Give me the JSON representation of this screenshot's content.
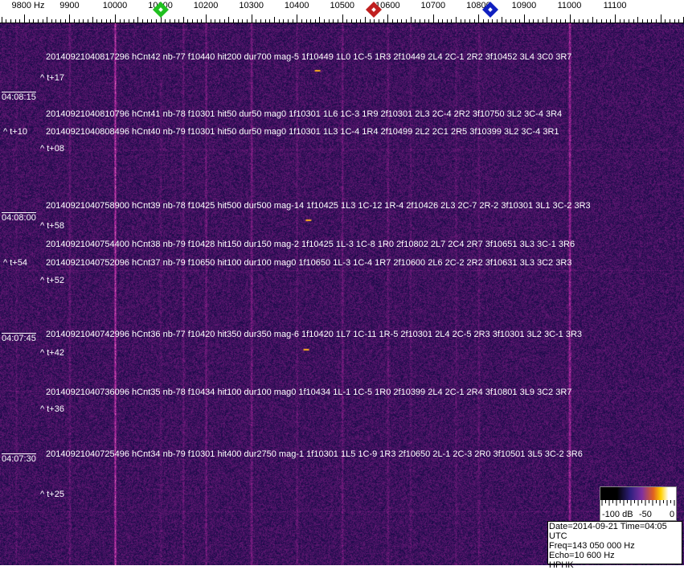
{
  "axis": {
    "unit_label": "9800 Hz",
    "ticks": [
      "9900",
      "10000",
      "10100",
      "10200",
      "10300",
      "10400",
      "10500",
      "10600",
      "10700",
      "10800",
      "10900",
      "11000",
      "11100"
    ],
    "tick_hz": [
      9900,
      10000,
      10100,
      10200,
      10300,
      10400,
      10500,
      10600,
      10700,
      10800,
      10900,
      11000,
      11100
    ]
  },
  "markers": [
    {
      "name": "green-marker",
      "hz": 10100,
      "color": "#20c020"
    },
    {
      "name": "red-marker",
      "hz": 10570,
      "color": "#c02020"
    },
    {
      "name": "blue-marker",
      "hz": 10825,
      "color": "#1020c0"
    }
  ],
  "time_labels": [
    "04:08:15",
    "04:08:00",
    "04:07:45",
    "04:07:30"
  ],
  "offsets": [
    "^ t+17",
    "^ t+10",
    "^ t+08",
    "^ t+58",
    "^ t+54",
    "^ t+52",
    "^ t+42",
    "^ t+36",
    "^ t+25"
  ],
  "detections": [
    "20140921040817296 hCnt42 nb-77 f10440 hit200 dur700 mag-5 1f10449 1L0 1C-5 1R3 2f10449 2L4 2C-1 2R2 3f10452 3L4 3C0 3R7",
    "20140921040810796 hCnt41 nb-78 f10301 hit50 dur50 mag0 1f10301 1L6 1C-3 1R9 2f10301 2L3 2C-4 2R2 3f10750 3L2 3C-4 3R4",
    "20140921040808496 hCnt40 nb-79 f10301 hit50 dur50 mag0 1f10301 1L3 1C-4 1R4 2f10499 2L2 2C1 2R5 3f10399 3L2 3C-4 3R1",
    "20140921040758900 hCnt39 nb-78 f10425 hit500 dur500 mag-14 1f10425 1L3 1C-12 1R-4 2f10426 2L3 2C-7 2R-2 3f10301 3L1 3C-2 3R3",
    "20140921040754400 hCnt38 nb-79 f10428 hit150 dur150 mag-2 1f10425 1L-3 1C-8 1R0 2f10802 2L7 2C4 2R7 3f10651 3L3 3C-1 3R6",
    "20140921040752096 hCnt37 nb-79 f10650 hit100 dur100 mag0 1f10650 1L-3 1C-4 1R7 2f10600 2L6 2C-2 2R2 3f10631 3L3 3C2 3R3",
    "20140921040742996 hCnt36 nb-77 f10420 hit350 dur350 mag-6 1f10420 1L7 1C-11 1R-5 2f10301 2L4 2C-5 2R3 3f10301 3L2 3C-1 3R3",
    "20140921040736096 hCnt35 nb-78 f10434 hit100 dur100 mag0 1f10434 1L-1 1C-5 1R0 2f10399 2L4 2C-1 2R4 3f10801 3L9 3C2 3R7",
    "20140921040725496 hCnt34 nb-79 f10301 hit400 dur2750 mag-1 1f10301 1L5 1C-9 1R3 2f10650 2L-1 2C-3 2R0 3f10501 3L5 3C-2 3R6"
  ],
  "colorbar": {
    "labels": [
      "-100 dB",
      "-50",
      "0"
    ]
  },
  "info": {
    "date_time": "Date=2014-09-21 Time=04:05 UTC",
    "freq": "Freq=143 050 000 Hz",
    "echo": "Echo=10 600 Hz",
    "station": "HPHK"
  }
}
